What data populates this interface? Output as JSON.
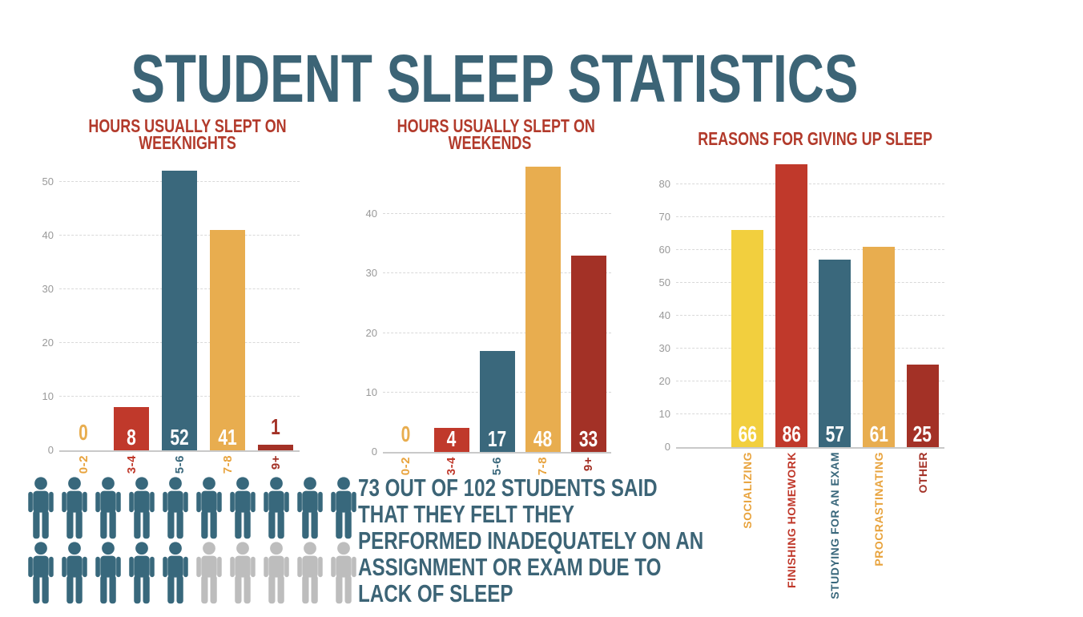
{
  "title": "STUDENT SLEEP STATISTICS",
  "stat_text": {
    "lines": [
      "73 OUT OF 102 STUDENTS SAID",
      "THAT THEY FELT THEY",
      "PERFORMED INADEQUATELY ON AN",
      "ASSIGNMENT OR EXAM DUE TO",
      "LACK OF SLEEP"
    ]
  },
  "pictogram": {
    "rows": 2,
    "per_row": 10,
    "total": 20,
    "highlighted": 15,
    "highlight_color": "#38687c",
    "muted_color": "#bdbdbd",
    "represents": "73 out of 102 students"
  },
  "colors": {
    "title_teal": "#3c6476",
    "subtitle_red": "#b23a2b",
    "teal": "#3a687c",
    "red": "#c0392b",
    "gold": "#e8ad4f",
    "bright_yellow": "#f2cf3e",
    "dark_red": "#a33126",
    "axis_gray": "#999999",
    "gridline_gray": "#d9d9d9",
    "background": "#ffffff"
  },
  "chart_data": [
    {
      "type": "bar",
      "title": "HOURS USUALLY SLEPT ON WEEKNIGHTS",
      "title_lines": [
        "HOURS USUALLY SLEPT ON",
        "WEEKNIGHTS"
      ],
      "categories": [
        "0-2",
        "3-4",
        "5-6",
        "7-8",
        "9+"
      ],
      "values": [
        0,
        8,
        52,
        41,
        1
      ],
      "bar_colors": [
        "#e8ad4f",
        "#c0392b",
        "#3a687c",
        "#e8ad4f",
        "#a33126"
      ],
      "category_colors": [
        "#e8a33d",
        "#c0392b",
        "#3a687c",
        "#e8a33d",
        "#a33126"
      ],
      "yticks": [
        0,
        10,
        20,
        30,
        40,
        50
      ],
      "ylim": [
        0,
        54.6
      ],
      "grid": true,
      "legend": false
    },
    {
      "type": "bar",
      "title": "HOURS USUALLY SLEPT ON WEEKENDS",
      "title_lines": [
        "HOURS USUALLY SLEPT ON",
        "WEEKENDS"
      ],
      "categories": [
        "0-2",
        "3-4",
        "5-6",
        "7-8",
        "9+"
      ],
      "values": [
        0,
        4,
        17,
        48,
        33
      ],
      "bar_colors": [
        "#e8ad4f",
        "#c0392b",
        "#3a687c",
        "#e8ad4f",
        "#a33126"
      ],
      "category_colors": [
        "#e8a33d",
        "#c0392b",
        "#3a687c",
        "#e8a33d",
        "#a33126"
      ],
      "yticks": [
        0,
        10,
        20,
        30,
        40
      ],
      "ylim": [
        0,
        49.6
      ],
      "grid": true,
      "legend": false
    },
    {
      "type": "bar",
      "title": "REASONS FOR GIVING UP SLEEP",
      "title_lines": [
        "REASONS FOR GIVING UP SLEEP"
      ],
      "categories": [
        "SOCIALIZING",
        "FINISHING HOMEWORK",
        "STUDYING FOR AN EXAM",
        "PROCRASTINATING",
        "OTHER"
      ],
      "values": [
        66,
        86,
        57,
        61,
        25
      ],
      "bar_colors": [
        "#f2cf3e",
        "#c0392b",
        "#3a687c",
        "#e8ad4f",
        "#a33126"
      ],
      "category_colors": [
        "#e8a33d",
        "#c0392b",
        "#3a687c",
        "#e8a33d",
        "#a33126"
      ],
      "yticks": [
        0,
        10,
        20,
        30,
        40,
        50,
        60,
        70,
        80
      ],
      "ylim": [
        0,
        88.2
      ],
      "grid": true,
      "legend": false
    }
  ]
}
